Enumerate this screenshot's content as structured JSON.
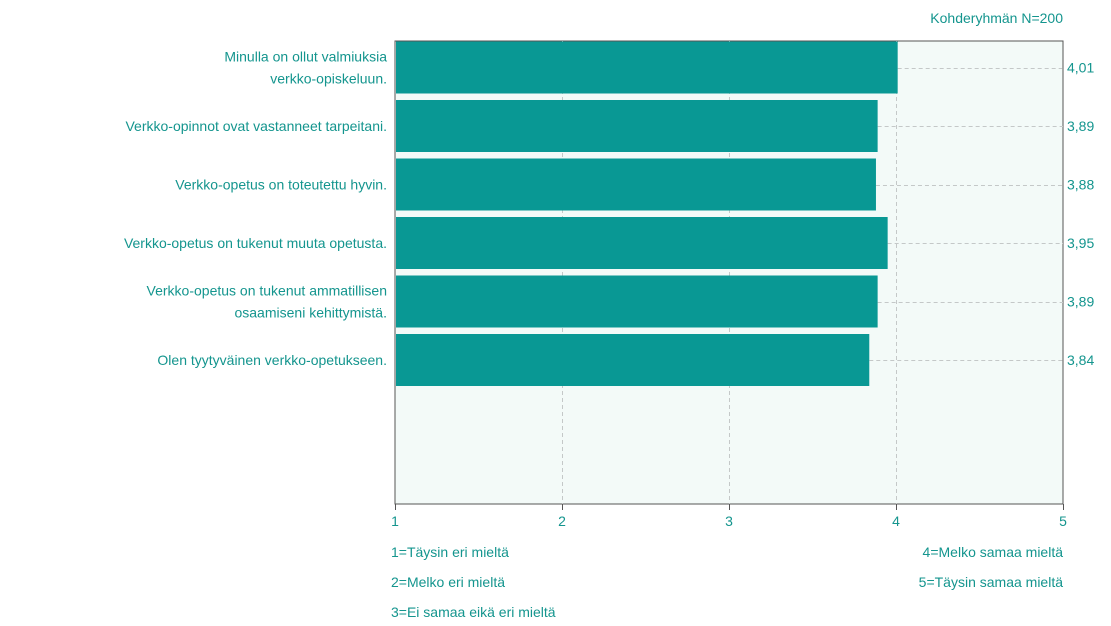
{
  "colors": {
    "bar": "#099894",
    "text": "#14958e",
    "plot_bg": "#f3faf8",
    "grid": "#c4c8c8",
    "axis": "#555555"
  },
  "chart_data": {
    "type": "bar",
    "orientation": "horizontal",
    "caption": "Kohderyhmän N=200",
    "categories": [
      [
        "Minulla on ollut valmiuksia",
        "verkko-opiskeluun."
      ],
      [
        "Verkko-opinnot ovat vastanneet tarpeitani."
      ],
      [
        "Verkko-opetus on toteutettu hyvin."
      ],
      [
        "Verkko-opetus on tukenut muuta opetusta."
      ],
      [
        "Verkko-opetus on tukenut ammatillisen",
        "osaamiseni kehittymistä."
      ],
      [
        "Olen tyytyväinen verkko-opetukseen."
      ]
    ],
    "values": [
      4.01,
      3.89,
      3.88,
      3.95,
      3.89,
      3.84
    ],
    "value_labels": [
      "4,01",
      "3,89",
      "3,88",
      "3,95",
      "3,89",
      "3,84"
    ],
    "xlim": [
      1,
      5
    ],
    "xticks": [
      1,
      2,
      3,
      4,
      5
    ],
    "xtick_labels": [
      "1",
      "2",
      "3",
      "4",
      "5"
    ],
    "grid": "vertical dashed"
  },
  "legend": {
    "left": [
      "1=Täysin eri mieltä",
      "2=Melko eri mieltä",
      "3=Ei samaa eikä eri mieltä"
    ],
    "right": [
      "4=Melko samaa mieltä",
      "5=Täysin samaa mieltä"
    ]
  }
}
